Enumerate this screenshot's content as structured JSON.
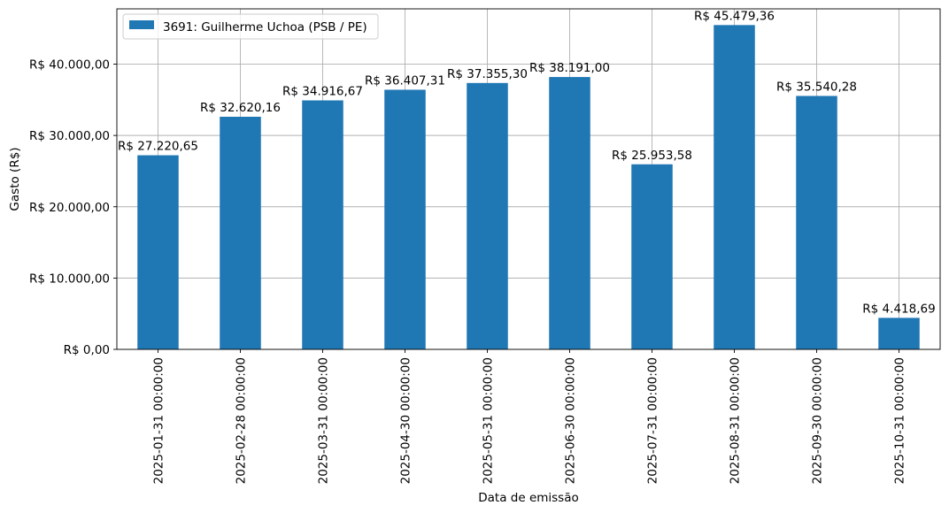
{
  "chart_data": {
    "type": "bar",
    "categories": [
      "2025-01-31 00:00:00",
      "2025-02-28 00:00:00",
      "2025-03-31 00:00:00",
      "2025-04-30 00:00:00",
      "2025-05-31 00:00:00",
      "2025-06-30 00:00:00",
      "2025-07-31 00:00:00",
      "2025-08-31 00:00:00",
      "2025-09-30 00:00:00",
      "2025-10-31 00:00:00"
    ],
    "series": [
      {
        "name": "3691: Guilherme Uchoa (PSB / PE)",
        "color": "#1f77b4",
        "values": [
          27220.65,
          32620.16,
          34916.67,
          36407.31,
          37355.3,
          38191.0,
          25953.58,
          45479.36,
          35540.28,
          4418.69
        ]
      }
    ],
    "data_labels": [
      "R$ 27.220,65",
      "R$ 32.620,16",
      "R$ 34.916,67",
      "R$ 36.407,31",
      "R$ 37.355,30",
      "R$ 38.191,00",
      "R$ 25.953,58",
      "R$ 45.479,36",
      "R$ 35.540,28",
      "R$ 4.418,69"
    ],
    "title": "",
    "xlabel": "Data de emissão",
    "ylabel": "Gasto (R$)",
    "ylim": [
      0,
      47754
    ],
    "yticks": [
      0,
      10000,
      20000,
      30000,
      40000
    ],
    "ytick_labels": [
      "R$ 0,00",
      "R$ 10.000,00",
      "R$ 20.000,00",
      "R$ 30.000,00",
      "R$ 40.000,00"
    ],
    "grid": true,
    "legend_position": "top-left"
  }
}
